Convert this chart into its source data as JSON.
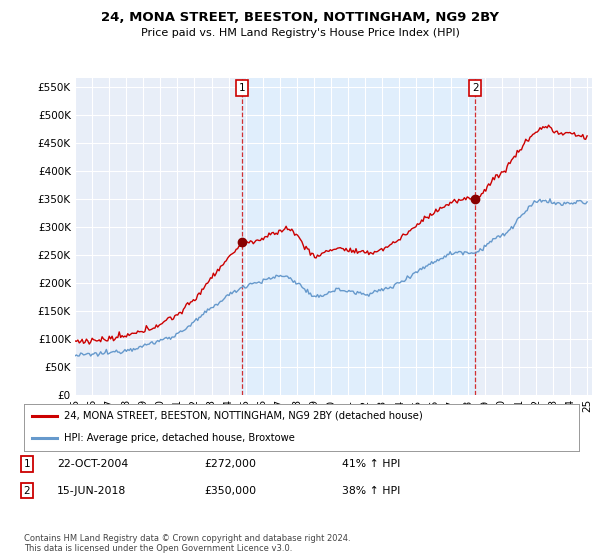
{
  "title": "24, MONA STREET, BEESTON, NOTTINGHAM, NG9 2BY",
  "subtitle": "Price paid vs. HM Land Registry's House Price Index (HPI)",
  "ylabel_ticks": [
    "£0",
    "£50K",
    "£100K",
    "£150K",
    "£200K",
    "£250K",
    "£300K",
    "£350K",
    "£400K",
    "£450K",
    "£500K",
    "£550K"
  ],
  "ytick_values": [
    0,
    50000,
    100000,
    150000,
    200000,
    250000,
    300000,
    350000,
    400000,
    450000,
    500000,
    550000
  ],
  "ylim": [
    0,
    565000
  ],
  "x_start_year": 1995,
  "x_end_year": 2025,
  "sale1_date": 2004.8,
  "sale1_price": 272000,
  "sale2_date": 2018.45,
  "sale2_price": 350000,
  "red_color": "#cc0000",
  "blue_color": "#6699cc",
  "shade_color": "#ddeeff",
  "legend_label1": "24, MONA STREET, BEESTON, NOTTINGHAM, NG9 2BY (detached house)",
  "legend_label2": "HPI: Average price, detached house, Broxtowe",
  "annotation1_date": "22-OCT-2004",
  "annotation1_price": "£272,000",
  "annotation1_hpi": "41% ↑ HPI",
  "annotation2_date": "15-JUN-2018",
  "annotation2_price": "£350,000",
  "annotation2_hpi": "38% ↑ HPI",
  "footnote": "Contains HM Land Registry data © Crown copyright and database right 2024.\nThis data is licensed under the Open Government Licence v3.0.",
  "background_color": "#ffffff",
  "plot_bg_color": "#e8eef8"
}
